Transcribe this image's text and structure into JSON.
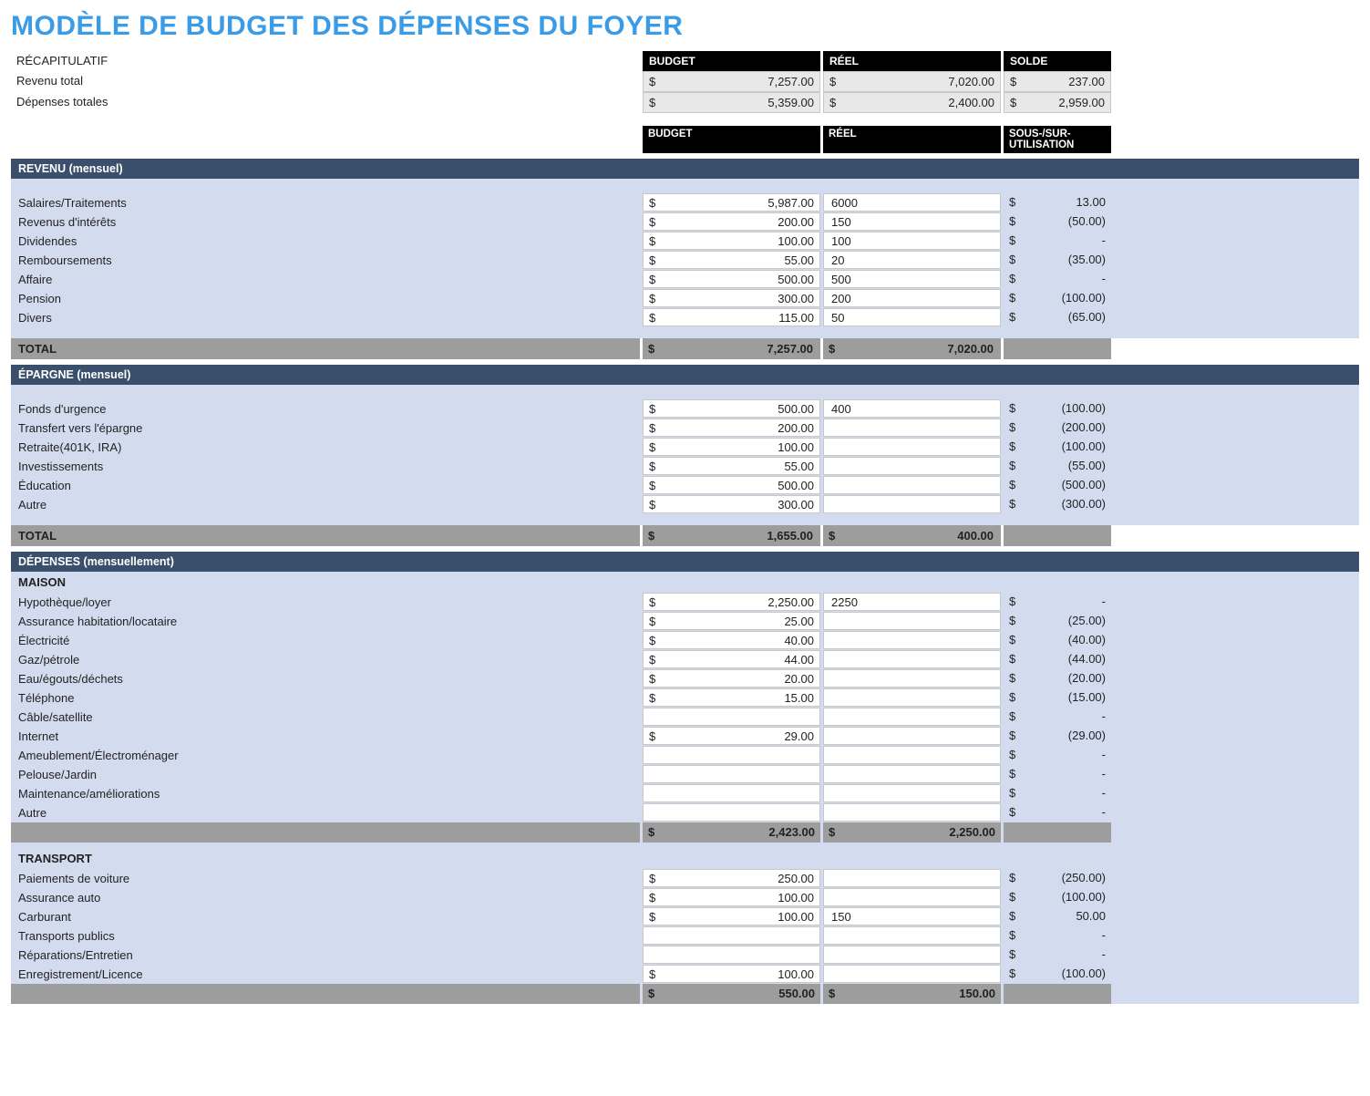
{
  "title": "MODÈLE DE BUDGET DES DÉPENSES DU FOYER",
  "summary": {
    "recap_label": "RÉCAPITULATIF",
    "cols": {
      "budget": "BUDGET",
      "reel": "RÉEL",
      "solde": "SOLDE"
    },
    "rows": [
      {
        "label": "Revenu total",
        "budget": "7,257.00",
        "reel": "7,020.00",
        "solde": "237.00"
      },
      {
        "label": "Dépenses totales",
        "budget": "5,359.00",
        "reel": "2,400.00",
        "solde": "2,959.00"
      }
    ]
  },
  "col_headers": {
    "budget": "BUDGET",
    "reel": "RÉEL",
    "variance": "SOUS-/SUR-UTILISATION"
  },
  "sections": [
    {
      "key": "revenu",
      "title": "REVENU (mensuel)",
      "rows": [
        {
          "label": "Salaires/Traitements",
          "budget": "5,987.00",
          "reel_raw": "6000",
          "var": "13.00"
        },
        {
          "label": "Revenus d'intérêts",
          "budget": "200.00",
          "reel_raw": "150",
          "var": "(50.00)"
        },
        {
          "label": "Dividendes",
          "budget": "100.00",
          "reel_raw": "100",
          "var": "-"
        },
        {
          "label": "Remboursements",
          "budget": "55.00",
          "reel_raw": "20",
          "var": "(35.00)"
        },
        {
          "label": "Affaire",
          "budget": "500.00",
          "reel_raw": "500",
          "var": "-"
        },
        {
          "label": "Pension",
          "budget": "300.00",
          "reel_raw": "200",
          "var": "(100.00)"
        },
        {
          "label": "Divers",
          "budget": "115.00",
          "reel_raw": "50",
          "var": "(65.00)"
        }
      ],
      "total": {
        "label": "TOTAL",
        "budget": "7,257.00",
        "reel": "7,020.00"
      }
    },
    {
      "key": "epargne",
      "title": "ÉPARGNE (mensuel)",
      "rows": [
        {
          "label": "Fonds d'urgence",
          "budget": "500.00",
          "reel_raw": "400",
          "var": "(100.00)"
        },
        {
          "label": "Transfert vers l'épargne",
          "budget": "200.00",
          "reel_raw": "",
          "var": "(200.00)"
        },
        {
          "label": "Retraite(401K, IRA)",
          "budget": "100.00",
          "reel_raw": "",
          "var": "(100.00)"
        },
        {
          "label": "Investissements",
          "budget": "55.00",
          "reel_raw": "",
          "var": "(55.00)"
        },
        {
          "label": "Éducation",
          "budget": "500.00",
          "reel_raw": "",
          "var": "(500.00)"
        },
        {
          "label": "Autre",
          "budget": "300.00",
          "reel_raw": "",
          "var": "(300.00)"
        }
      ],
      "total": {
        "label": "TOTAL",
        "budget": "1,655.00",
        "reel": "400.00"
      }
    }
  ],
  "depenses": {
    "title": "DÉPENSES (mensuellement)",
    "groups": [
      {
        "name": "MAISON",
        "rows": [
          {
            "label": "Hypothèque/loyer",
            "budget": "2,250.00",
            "reel_raw": "2250",
            "var": "-"
          },
          {
            "label": "Assurance habitation/locataire",
            "budget": "25.00",
            "reel_raw": "",
            "var": "(25.00)"
          },
          {
            "label": "Électricité",
            "budget": "40.00",
            "reel_raw": "",
            "var": "(40.00)"
          },
          {
            "label": "Gaz/pétrole",
            "budget": "44.00",
            "reel_raw": "",
            "var": "(44.00)"
          },
          {
            "label": "Eau/égouts/déchets",
            "budget": "20.00",
            "reel_raw": "",
            "var": "(20.00)"
          },
          {
            "label": "Téléphone",
            "budget": "15.00",
            "reel_raw": "",
            "var": "(15.00)"
          },
          {
            "label": "Câble/satellite",
            "budget": "",
            "reel_raw": "",
            "var": "-"
          },
          {
            "label": "Internet",
            "budget": "29.00",
            "reel_raw": "",
            "var": "(29.00)"
          },
          {
            "label": "Ameublement/Électroménager",
            "budget": "",
            "reel_raw": "",
            "var": "-"
          },
          {
            "label": "Pelouse/Jardin",
            "budget": "",
            "reel_raw": "",
            "var": "-"
          },
          {
            "label": "Maintenance/améliorations",
            "budget": "",
            "reel_raw": "",
            "var": "-"
          },
          {
            "label": "Autre",
            "budget": "",
            "reel_raw": "",
            "var": "-"
          }
        ],
        "subtotal": {
          "budget": "2,423.00",
          "reel": "2,250.00"
        }
      },
      {
        "name": "TRANSPORT",
        "rows": [
          {
            "label": "Paiements de voiture",
            "budget": "250.00",
            "reel_raw": "",
            "var": "(250.00)"
          },
          {
            "label": "Assurance auto",
            "budget": "100.00",
            "reel_raw": "",
            "var": "(100.00)"
          },
          {
            "label": "Carburant",
            "budget": "100.00",
            "reel_raw": "150",
            "var": "50.00"
          },
          {
            "label": "Transports publics",
            "budget": "",
            "reel_raw": "",
            "var": "-"
          },
          {
            "label": "Réparations/Entretien",
            "budget": "",
            "reel_raw": "",
            "var": "-"
          },
          {
            "label": "Enregistrement/Licence",
            "budget": "100.00",
            "reel_raw": "",
            "var": "(100.00)"
          }
        ],
        "subtotal": {
          "budget": "550.00",
          "reel": "150.00"
        }
      }
    ]
  },
  "currency": "$",
  "colors": {
    "title": "#3a9be7",
    "section_header": "#3a4f6b",
    "section_body": "#d3dcef",
    "total_row": "#9d9d9d",
    "summary_cell": "#e8e8e8"
  }
}
